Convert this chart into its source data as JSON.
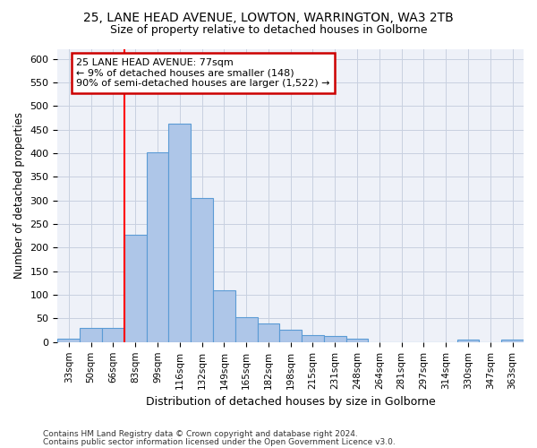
{
  "title1": "25, LANE HEAD AVENUE, LOWTON, WARRINGTON, WA3 2TB",
  "title2": "Size of property relative to detached houses in Golborne",
  "xlabel": "Distribution of detached houses by size in Golborne",
  "ylabel": "Number of detached properties",
  "categories": [
    "33sqm",
    "50sqm",
    "66sqm",
    "83sqm",
    "99sqm",
    "116sqm",
    "132sqm",
    "149sqm",
    "165sqm",
    "182sqm",
    "198sqm",
    "215sqm",
    "231sqm",
    "248sqm",
    "264sqm",
    "281sqm",
    "297sqm",
    "314sqm",
    "330sqm",
    "347sqm",
    "363sqm"
  ],
  "values": [
    7,
    30,
    30,
    228,
    402,
    463,
    305,
    110,
    53,
    40,
    27,
    14,
    12,
    7,
    0,
    0,
    0,
    0,
    5,
    0,
    5
  ],
  "bar_color": "#aec6e8",
  "bar_edge_color": "#5b9bd5",
  "annotation_text1": "25 LANE HEAD AVENUE: 77sqm",
  "annotation_text2": "← 9% of detached houses are smaller (148)",
  "annotation_text3": "90% of semi-detached houses are larger (1,522) →",
  "annotation_box_edge": "#cc0000",
  "footer1": "Contains HM Land Registry data © Crown copyright and database right 2024.",
  "footer2": "Contains public sector information licensed under the Open Government Licence v3.0.",
  "bg_color": "#eef1f8",
  "ylim": [
    0,
    620
  ],
  "yticks": [
    0,
    50,
    100,
    150,
    200,
    250,
    300,
    350,
    400,
    450,
    500,
    550,
    600
  ]
}
